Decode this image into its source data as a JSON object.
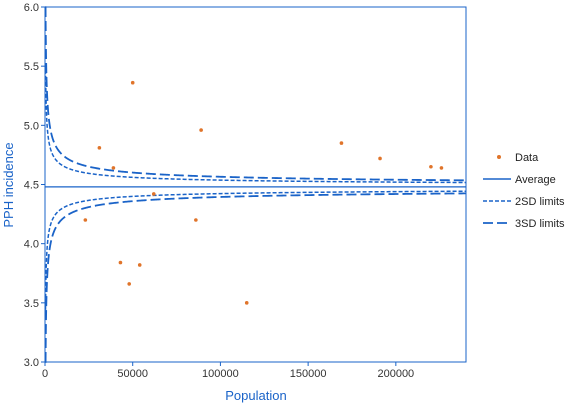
{
  "chart_data": {
    "type": "scatter",
    "title": "",
    "xlabel": "Population",
    "ylabel": "PPH incidence",
    "xlim": [
      0,
      240000
    ],
    "ylim": [
      3.0,
      6.0
    ],
    "x_ticks": [
      0,
      50000,
      100000,
      150000,
      200000
    ],
    "y_ticks": [
      "3.0",
      "3.5",
      "4.0",
      "4.5",
      "5.0",
      "5.5",
      "6.0"
    ],
    "average": 4.48,
    "legend_position": "right",
    "legend": {
      "data": "Data",
      "average": "Average",
      "sd2": "2SD limits",
      "sd3": "3SD limits"
    },
    "colors": {
      "data": "#e0742a",
      "lines": "#1a63c8"
    },
    "series": [
      {
        "name": "Data",
        "points": [
          {
            "x": 23000,
            "y": 4.2
          },
          {
            "x": 31000,
            "y": 4.81
          },
          {
            "x": 39000,
            "y": 4.64
          },
          {
            "x": 43000,
            "y": 3.84
          },
          {
            "x": 48000,
            "y": 3.66
          },
          {
            "x": 50000,
            "y": 5.36
          },
          {
            "x": 54000,
            "y": 3.82
          },
          {
            "x": 62000,
            "y": 4.42
          },
          {
            "x": 86000,
            "y": 4.2
          },
          {
            "x": 89000,
            "y": 4.96
          },
          {
            "x": 115000,
            "y": 3.5
          },
          {
            "x": 169000,
            "y": 4.85
          },
          {
            "x": 191000,
            "y": 4.72
          },
          {
            "x": 220000,
            "y": 4.65
          },
          {
            "x": 226000,
            "y": 4.64
          }
        ]
      }
    ]
  }
}
